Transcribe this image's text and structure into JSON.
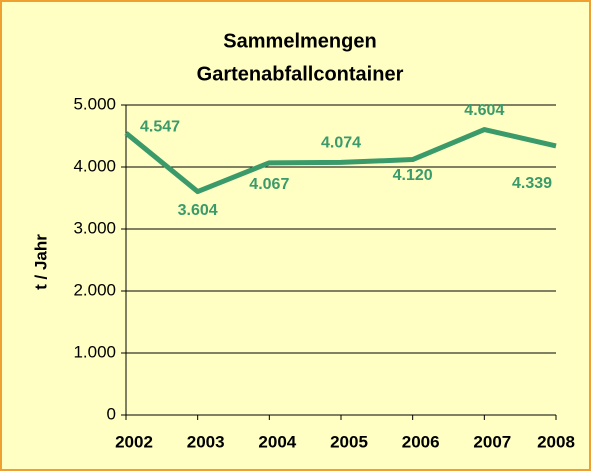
{
  "chart_data": {
    "type": "line",
    "title": [
      "Sammelmengen",
      "Gartenabfallcontainer"
    ],
    "y_label": "t / Jahr",
    "categories": [
      "2002",
      "2003",
      "2004",
      "2005",
      "2006",
      "2007",
      "2008"
    ],
    "values": [
      4547,
      3604,
      4067,
      4074,
      4120,
      4604,
      4339
    ],
    "value_labels": [
      "4.547",
      "3.604",
      "4.067",
      "4.074",
      "4.120",
      "4.604",
      "4.339"
    ],
    "color": "#3a9a6a",
    "ylim": [
      0,
      5000
    ],
    "yticks": [
      0,
      {
        "value": 1000,
        "label": "1.000"
      },
      {
        "value": 2000,
        "label": "2.000"
      },
      {
        "value": 3000,
        "label": "3.000"
      },
      {
        "value": 4000,
        "label": "4.000"
      },
      {
        "value": 5000,
        "label": "5.000"
      }
    ],
    "grid": true
  }
}
